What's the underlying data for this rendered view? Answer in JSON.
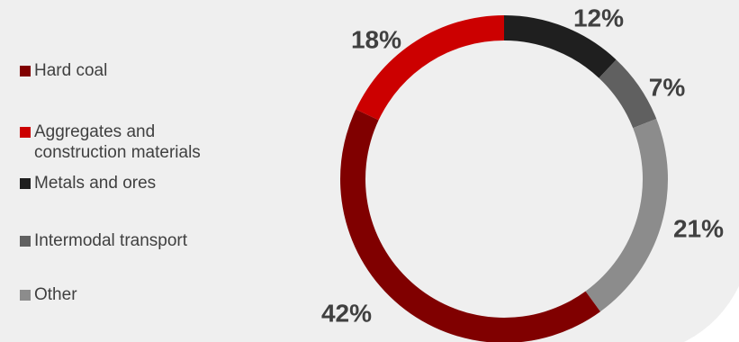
{
  "chart_data": {
    "type": "pie",
    "style": "donut",
    "title": "",
    "legend_position": "left",
    "slices": [
      {
        "label": "Metals and ores",
        "value": 12,
        "display": "12%",
        "color": "#1f1f1f"
      },
      {
        "label": "Intermodal transport",
        "value": 7,
        "display": "7%",
        "color": "#606060"
      },
      {
        "label": "Other",
        "value": 21,
        "display": "21%",
        "color": "#8c8c8c"
      },
      {
        "label": "Hard coal",
        "value": 42,
        "display": "42%",
        "color": "#800000"
      },
      {
        "label": "Aggregates and\nconstruction materials",
        "value": 18,
        "display": "18%",
        "color": "#cc0000"
      }
    ],
    "legend": [
      {
        "label": "Hard coal",
        "color": "#800000"
      },
      {
        "label": "Aggregates and\nconstruction materials",
        "color": "#cc0000"
      },
      {
        "label": "Metals and ores",
        "color": "#1f1f1f"
      },
      {
        "label": "Intermodal transport",
        "color": "#606060"
      },
      {
        "label": "Other",
        "color": "#8c8c8c"
      }
    ]
  },
  "background_color": "#efefef"
}
